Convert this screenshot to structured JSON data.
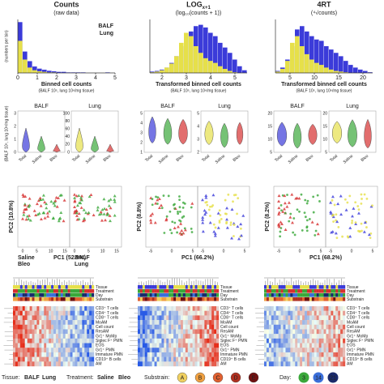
{
  "histograms": [
    {
      "title": "Counts",
      "subtitle": "(raw data)",
      "x_label": "Binned cell counts",
      "xlim": [
        0,
        5
      ],
      "xticks": [
        0,
        1,
        2,
        3,
        4,
        5
      ],
      "ylim": [
        0,
        100
      ],
      "bins": [
        0,
        0.25,
        0.5,
        0.75,
        1,
        1.25,
        1.5,
        1.75,
        2,
        2.25,
        2.5,
        2.75,
        3,
        3.25,
        3.5,
        3.75,
        4,
        4.25,
        4.5,
        4.75,
        5
      ],
      "series": [
        {
          "name": "BALF",
          "color": "#3b3bd9",
          "values": [
            95,
            40,
            22,
            12,
            8,
            6,
            4,
            3,
            2,
            2,
            1,
            1,
            1,
            1,
            0,
            0,
            0,
            0,
            1,
            0
          ]
        },
        {
          "name": "Lung",
          "color": "#e6e04a",
          "values": [
            60,
            25,
            10,
            5,
            3,
            2,
            1,
            1,
            0,
            0,
            0,
            0,
            0,
            0,
            0,
            0,
            0,
            0,
            0,
            0
          ]
        }
      ]
    },
    {
      "title": "LOG",
      "title_sub": "x+1",
      "subtitle": "(log₁₀(counts + 1))",
      "x_label": "Transformed binned cell counts",
      "xlim": [
        1.5,
        5.5
      ],
      "xticks": [
        2,
        3,
        4,
        5
      ],
      "ylim": [
        0,
        80
      ],
      "bins": [
        1.5,
        1.7,
        1.9,
        2.1,
        2.3,
        2.5,
        2.7,
        2.9,
        3.1,
        3.3,
        3.5,
        3.7,
        3.9,
        4.1,
        4.3,
        4.5,
        4.7,
        4.9,
        5.1,
        5.3,
        5.5
      ],
      "series": [
        {
          "name": "BALF",
          "color": "#3b3bd9",
          "values": [
            2,
            3,
            5,
            8,
            15,
            25,
            40,
            55,
            62,
            70,
            72,
            68,
            60,
            55,
            45,
            38,
            30,
            20,
            10,
            4
          ]
        },
        {
          "name": "Lung",
          "color": "#e6e04a",
          "values": [
            1,
            2,
            4,
            8,
            14,
            25,
            45,
            60,
            55,
            40,
            30,
            22,
            18,
            15,
            10,
            6,
            3,
            1,
            0,
            0
          ]
        }
      ]
    },
    {
      "title": "4RT",
      "subtitle": "(⁴√counts)",
      "x_label": "Transformed binned cell counts",
      "xlim": [
        2,
        22
      ],
      "xticks": [
        5,
        10,
        15,
        20
      ],
      "ylim": [
        0,
        80
      ],
      "bins": [
        2,
        3,
        4,
        5,
        6,
        7,
        8,
        9,
        10,
        11,
        12,
        13,
        14,
        15,
        16,
        17,
        18,
        19,
        20,
        21,
        22
      ],
      "series": [
        {
          "name": "BALF",
          "color": "#3b3bd9",
          "values": [
            3,
            8,
            20,
            40,
            65,
            70,
            62,
            55,
            50,
            48,
            40,
            35,
            30,
            25,
            18,
            12,
            8,
            5,
            3,
            1
          ]
        },
        {
          "name": "Lung",
          "color": "#e6e04a",
          "values": [
            2,
            6,
            18,
            45,
            55,
            40,
            28,
            20,
            15,
            12,
            8,
            5,
            3,
            2,
            1,
            0,
            0,
            0,
            0,
            0
          ]
        }
      ]
    }
  ],
  "histogram_y_label": "(numbers per bin)",
  "unit_label": "(BALF 10⁵, lung 10⁶/mg tissue)",
  "violins": [
    {
      "groups": [
        {
          "name": "BALF",
          "yticks": [
            "0",
            "1",
            "2",
            "3"
          ]
        },
        {
          "name": "Lung",
          "yticks": [
            "0",
            "20",
            "40",
            "60",
            "80",
            "100"
          ]
        }
      ]
    },
    {
      "groups": [
        {
          "name": "BALF",
          "yticks": [
            "1",
            "2",
            "3",
            "4",
            "5"
          ]
        },
        {
          "name": "Lung",
          "yticks": [
            "2",
            "3",
            "4",
            "5"
          ]
        }
      ]
    },
    {
      "groups": [
        {
          "name": "BALF",
          "yticks": [
            "5",
            "10",
            "15",
            "20"
          ]
        },
        {
          "name": "Lung",
          "yticks": [
            "5",
            "10",
            "15",
            "20"
          ]
        }
      ]
    }
  ],
  "violin_x_labels": [
    "Total",
    "Saline",
    "Bleo"
  ],
  "pca": [
    {
      "y_label": "PC2 (10.8%)",
      "x_label": "PC1 (52.9%)",
      "xticks": [
        "0",
        "5",
        "10",
        "15"
      ]
    },
    {
      "y_label": "PC2 (8.8%)",
      "x_label": "PC1 (66.2%)",
      "xticks": [
        "-5",
        "0",
        "5"
      ]
    },
    {
      "y_label": "PC2 (8.2%)",
      "x_label": "PC1 (68.2%)",
      "xticks": [
        "-5",
        "0",
        "5"
      ]
    }
  ],
  "pca_legend": [
    "Saline",
    "Bleo",
    "BALF",
    "Lung"
  ],
  "heatmap": {
    "tracks": [
      "Tissue",
      "Treatment",
      "Day",
      "Substrain"
    ],
    "rows": [
      "CD3⁺ T cells",
      "CD4⁺ T cells",
      "CD8⁺ T cells",
      "MoAM",
      "Cell count",
      "ResAM",
      "Gr1⁺ MoMp",
      "Siglec F⁺ PMN",
      "EOS",
      "Gr1⁺ PMN",
      "Immature PMN",
      "CD19⁺ B cells",
      "AM"
    ]
  },
  "legend": {
    "tissue": {
      "label": "Tissue:",
      "items": [
        "BALF",
        "Lung"
      ]
    },
    "treatment": {
      "label": "Treatment:",
      "items": [
        "Saline",
        "Bleo"
      ]
    },
    "substrain": {
      "label": "Substrain:",
      "items": [
        "A",
        "B",
        "C",
        "D",
        "E"
      ]
    },
    "day": {
      "label": "Day:",
      "items": [
        "3",
        "14",
        "21"
      ]
    }
  }
}
